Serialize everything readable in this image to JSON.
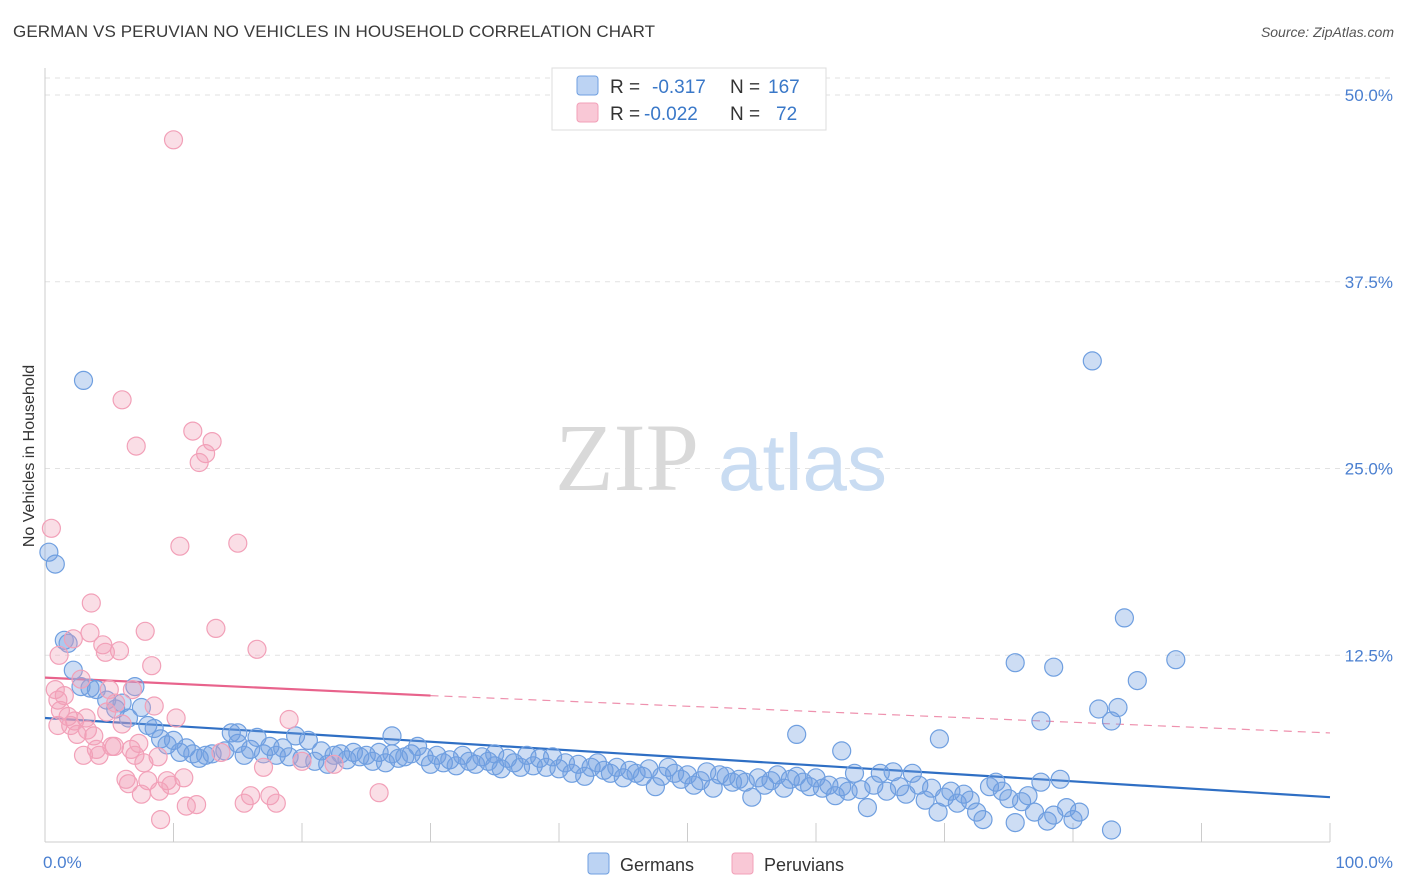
{
  "chart_data": {
    "type": "scatter",
    "title": "GERMAN VS PERUVIAN NO VEHICLES IN HOUSEHOLD CORRELATION CHART",
    "source": "Source: ZipAtlas.com",
    "xlabel": "",
    "ylabel": "No Vehicles in Household",
    "xlim": [
      0,
      100
    ],
    "ylim": [
      0,
      50
    ],
    "x_tick_labels": [
      "0.0%",
      "100.0%"
    ],
    "y_ticks": [
      12.5,
      25.0,
      37.5,
      50.0
    ],
    "y_tick_labels": [
      "12.5%",
      "25.0%",
      "37.5%",
      "50.0%"
    ],
    "watermark": "ZIPatlas",
    "legend": {
      "rows": [
        {
          "r_label": "R =",
          "r_value": "-0.317",
          "n_label": "N =",
          "n_value": "167"
        },
        {
          "r_label": "R =",
          "r_value": "-0.022",
          "n_label": "N =",
          "n_value": "72"
        }
      ]
    },
    "series": [
      {
        "name": "Germans",
        "color": "#6f9fe0",
        "line_color": "#2f6fc4",
        "trend": {
          "x": [
            0,
            100
          ],
          "y": [
            8.3,
            3.0
          ],
          "dashed_from": null
        },
        "points": [
          [
            0.3,
            19.4
          ],
          [
            0.8,
            18.6
          ],
          [
            3,
            30.9
          ],
          [
            1.5,
            13.5
          ],
          [
            1.8,
            13.3
          ],
          [
            2.2,
            11.5
          ],
          [
            2.8,
            10.4
          ],
          [
            3.5,
            10.3
          ],
          [
            4,
            10.2
          ],
          [
            4.8,
            9.5
          ],
          [
            5.5,
            8.9
          ],
          [
            6,
            9.3
          ],
          [
            6.5,
            8.3
          ],
          [
            7,
            10.4
          ],
          [
            7.5,
            9.0
          ],
          [
            8,
            7.8
          ],
          [
            8.5,
            7.6
          ],
          [
            9,
            6.9
          ],
          [
            9.5,
            6.5
          ],
          [
            10,
            6.8
          ],
          [
            10.5,
            6.0
          ],
          [
            11,
            6.3
          ],
          [
            11.5,
            5.9
          ],
          [
            12,
            5.6
          ],
          [
            12.5,
            5.8
          ],
          [
            13,
            5.9
          ],
          [
            14,
            6.1
          ],
          [
            14.5,
            7.3
          ],
          [
            15,
            6.6
          ],
          [
            15.5,
            5.8
          ],
          [
            16,
            6.2
          ],
          [
            16.5,
            7.0
          ],
          [
            17,
            5.9
          ],
          [
            17.5,
            6.4
          ],
          [
            18,
            5.8
          ],
          [
            18.5,
            6.3
          ],
          [
            19,
            5.7
          ],
          [
            19.5,
            7.1
          ],
          [
            20,
            5.6
          ],
          [
            20.5,
            6.8
          ],
          [
            21,
            5.4
          ],
          [
            21.5,
            6.1
          ],
          [
            22,
            5.2
          ],
          [
            22.5,
            5.8
          ],
          [
            23,
            5.9
          ],
          [
            23.5,
            5.5
          ],
          [
            24,
            6.0
          ],
          [
            24.5,
            5.7
          ],
          [
            25,
            5.8
          ],
          [
            25.5,
            5.4
          ],
          [
            26,
            6.0
          ],
          [
            26.5,
            5.3
          ],
          [
            27,
            5.9
          ],
          [
            27.5,
            5.6
          ],
          [
            28,
            5.7
          ],
          [
            28.5,
            5.9
          ],
          [
            29,
            6.4
          ],
          [
            29.5,
            5.7
          ],
          [
            30,
            5.2
          ],
          [
            30.5,
            5.8
          ],
          [
            31,
            5.3
          ],
          [
            31.5,
            5.5
          ],
          [
            32,
            5.1
          ],
          [
            32.5,
            5.8
          ],
          [
            33,
            5.4
          ],
          [
            33.5,
            5.2
          ],
          [
            34,
            5.7
          ],
          [
            34.5,
            5.4
          ],
          [
            35,
            5.1
          ],
          [
            35.5,
            4.9
          ],
          [
            36,
            5.6
          ],
          [
            36.5,
            5.3
          ],
          [
            37,
            5.0
          ],
          [
            37.5,
            5.8
          ],
          [
            38,
            5.1
          ],
          [
            38.5,
            5.6
          ],
          [
            39,
            5.0
          ],
          [
            39.5,
            5.7
          ],
          [
            40,
            4.9
          ],
          [
            40.5,
            5.3
          ],
          [
            41,
            4.6
          ],
          [
            41.5,
            5.2
          ],
          [
            42,
            4.4
          ],
          [
            42.5,
            5.0
          ],
          [
            43,
            5.3
          ],
          [
            43.5,
            4.8
          ],
          [
            44,
            4.6
          ],
          [
            44.5,
            5.0
          ],
          [
            45,
            4.3
          ],
          [
            45.5,
            4.8
          ],
          [
            46,
            4.6
          ],
          [
            46.5,
            4.4
          ],
          [
            47,
            4.9
          ],
          [
            47.5,
            3.7
          ],
          [
            48,
            4.4
          ],
          [
            48.5,
            5.0
          ],
          [
            49,
            4.6
          ],
          [
            49.5,
            4.2
          ],
          [
            50,
            4.5
          ],
          [
            50.5,
            3.8
          ],
          [
            51,
            4.1
          ],
          [
            51.5,
            4.7
          ],
          [
            52,
            3.6
          ],
          [
            52.5,
            4.5
          ],
          [
            53,
            4.4
          ],
          [
            53.5,
            4.0
          ],
          [
            54,
            4.2
          ],
          [
            54.5,
            4.0
          ],
          [
            55,
            3.0
          ],
          [
            55.5,
            4.3
          ],
          [
            56,
            3.8
          ],
          [
            56.5,
            4.1
          ],
          [
            57,
            4.5
          ],
          [
            57.5,
            3.6
          ],
          [
            58,
            4.2
          ],
          [
            58.5,
            4.4
          ],
          [
            59,
            4.0
          ],
          [
            59.5,
            3.7
          ],
          [
            60,
            4.3
          ],
          [
            60.5,
            3.6
          ],
          [
            61,
            3.8
          ],
          [
            61.5,
            3.1
          ],
          [
            62,
            3.7
          ],
          [
            62.5,
            3.4
          ],
          [
            63,
            4.6
          ],
          [
            63.5,
            3.5
          ],
          [
            64,
            2.3
          ],
          [
            64.5,
            3.8
          ],
          [
            65,
            4.6
          ],
          [
            65.5,
            3.4
          ],
          [
            66,
            4.7
          ],
          [
            66.5,
            3.7
          ],
          [
            67,
            3.2
          ],
          [
            67.5,
            4.6
          ],
          [
            68,
            3.8
          ],
          [
            68.5,
            2.8
          ],
          [
            69,
            3.6
          ],
          [
            69.5,
            2.0
          ],
          [
            70,
            3.0
          ],
          [
            70.5,
            3.4
          ],
          [
            71,
            2.6
          ],
          [
            71.5,
            3.2
          ],
          [
            72,
            2.8
          ],
          [
            72.5,
            2.0
          ],
          [
            73,
            1.5
          ],
          [
            73.5,
            3.7
          ],
          [
            74,
            4.0
          ],
          [
            74.5,
            3.4
          ],
          [
            75,
            2.9
          ],
          [
            75.5,
            1.3
          ],
          [
            76,
            2.7
          ],
          [
            76.5,
            3.1
          ],
          [
            77,
            2.0
          ],
          [
            77.5,
            4.0
          ],
          [
            78,
            1.4
          ],
          [
            78.5,
            1.8
          ],
          [
            79,
            4.2
          ],
          [
            79.5,
            2.3
          ],
          [
            80,
            1.5
          ],
          [
            80.5,
            2.0
          ],
          [
            15,
            7.3
          ],
          [
            27,
            7.1
          ],
          [
            35,
            5.9
          ],
          [
            58.5,
            7.2
          ],
          [
            62,
            6.1
          ],
          [
            69.6,
            6.9
          ],
          [
            75.5,
            12.0
          ],
          [
            77.5,
            8.1
          ],
          [
            78.5,
            11.7
          ],
          [
            82,
            8.9
          ],
          [
            83,
            8.1
          ],
          [
            83.5,
            9.0
          ],
          [
            84,
            15.0
          ],
          [
            85,
            10.8
          ],
          [
            88,
            12.2
          ],
          [
            81.5,
            32.2
          ],
          [
            83,
            0.8
          ]
        ]
      },
      {
        "name": "Peruvians",
        "color": "#f2a0b8",
        "line_color": "#e8638c",
        "trend": {
          "x": [
            0,
            30,
            100
          ],
          "y": [
            11.0,
            9.8,
            7.3
          ],
          "dashed_from": 30
        },
        "points": [
          [
            0.5,
            21.0
          ],
          [
            0.8,
            10.2
          ],
          [
            1.0,
            9.5
          ],
          [
            1.2,
            8.8
          ],
          [
            1.5,
            9.8
          ],
          [
            1.8,
            8.4
          ],
          [
            2.0,
            7.8
          ],
          [
            2.2,
            13.6
          ],
          [
            2.5,
            7.2
          ],
          [
            2.8,
            10.9
          ],
          [
            3.0,
            5.8
          ],
          [
            3.2,
            8.3
          ],
          [
            3.5,
            14.0
          ],
          [
            3.8,
            7.1
          ],
          [
            4.0,
            6.2
          ],
          [
            4.2,
            5.8
          ],
          [
            4.5,
            13.2
          ],
          [
            4.8,
            8.7
          ],
          [
            5.0,
            10.2
          ],
          [
            5.2,
            6.4
          ],
          [
            5.5,
            9.3
          ],
          [
            5.8,
            12.8
          ],
          [
            6.0,
            7.9
          ],
          [
            6.3,
            4.2
          ],
          [
            6.5,
            3.9
          ],
          [
            6.8,
            10.2
          ],
          [
            7.0,
            5.8
          ],
          [
            7.3,
            6.6
          ],
          [
            7.5,
            3.2
          ],
          [
            7.8,
            14.1
          ],
          [
            8.0,
            4.1
          ],
          [
            8.3,
            11.8
          ],
          [
            8.5,
            9.1
          ],
          [
            8.8,
            5.7
          ],
          [
            9.0,
            1.5
          ],
          [
            9.5,
            4.1
          ],
          [
            10.0,
            47.0
          ],
          [
            10.2,
            8.3
          ],
          [
            10.5,
            19.8
          ],
          [
            10.8,
            4.3
          ],
          [
            11.0,
            2.4
          ],
          [
            11.5,
            27.5
          ],
          [
            12.0,
            25.4
          ],
          [
            12.5,
            26.0
          ],
          [
            13.0,
            26.8
          ],
          [
            13.3,
            14.3
          ],
          [
            15.0,
            20.0
          ],
          [
            15.5,
            2.6
          ],
          [
            16.0,
            3.1
          ],
          [
            16.5,
            12.9
          ],
          [
            17.0,
            5.0
          ],
          [
            17.5,
            3.1
          ],
          [
            18.0,
            2.6
          ],
          [
            19.0,
            8.2
          ],
          [
            20.0,
            5.4
          ],
          [
            22.5,
            5.2
          ],
          [
            26.0,
            3.3
          ],
          [
            1.1,
            12.5
          ],
          [
            3.6,
            16.0
          ],
          [
            6.0,
            29.6
          ],
          [
            7.1,
            26.5
          ],
          [
            1.0,
            7.8
          ],
          [
            2.3,
            8.1
          ],
          [
            3.3,
            7.5
          ],
          [
            4.7,
            12.7
          ],
          [
            5.4,
            6.4
          ],
          [
            6.7,
            6.2
          ],
          [
            7.7,
            5.3
          ],
          [
            8.9,
            3.4
          ],
          [
            9.8,
            3.8
          ],
          [
            11.8,
            2.5
          ],
          [
            13.7,
            6.0
          ]
        ]
      }
    ]
  },
  "bottom_legend": [
    "Germans",
    "Peruvians"
  ]
}
